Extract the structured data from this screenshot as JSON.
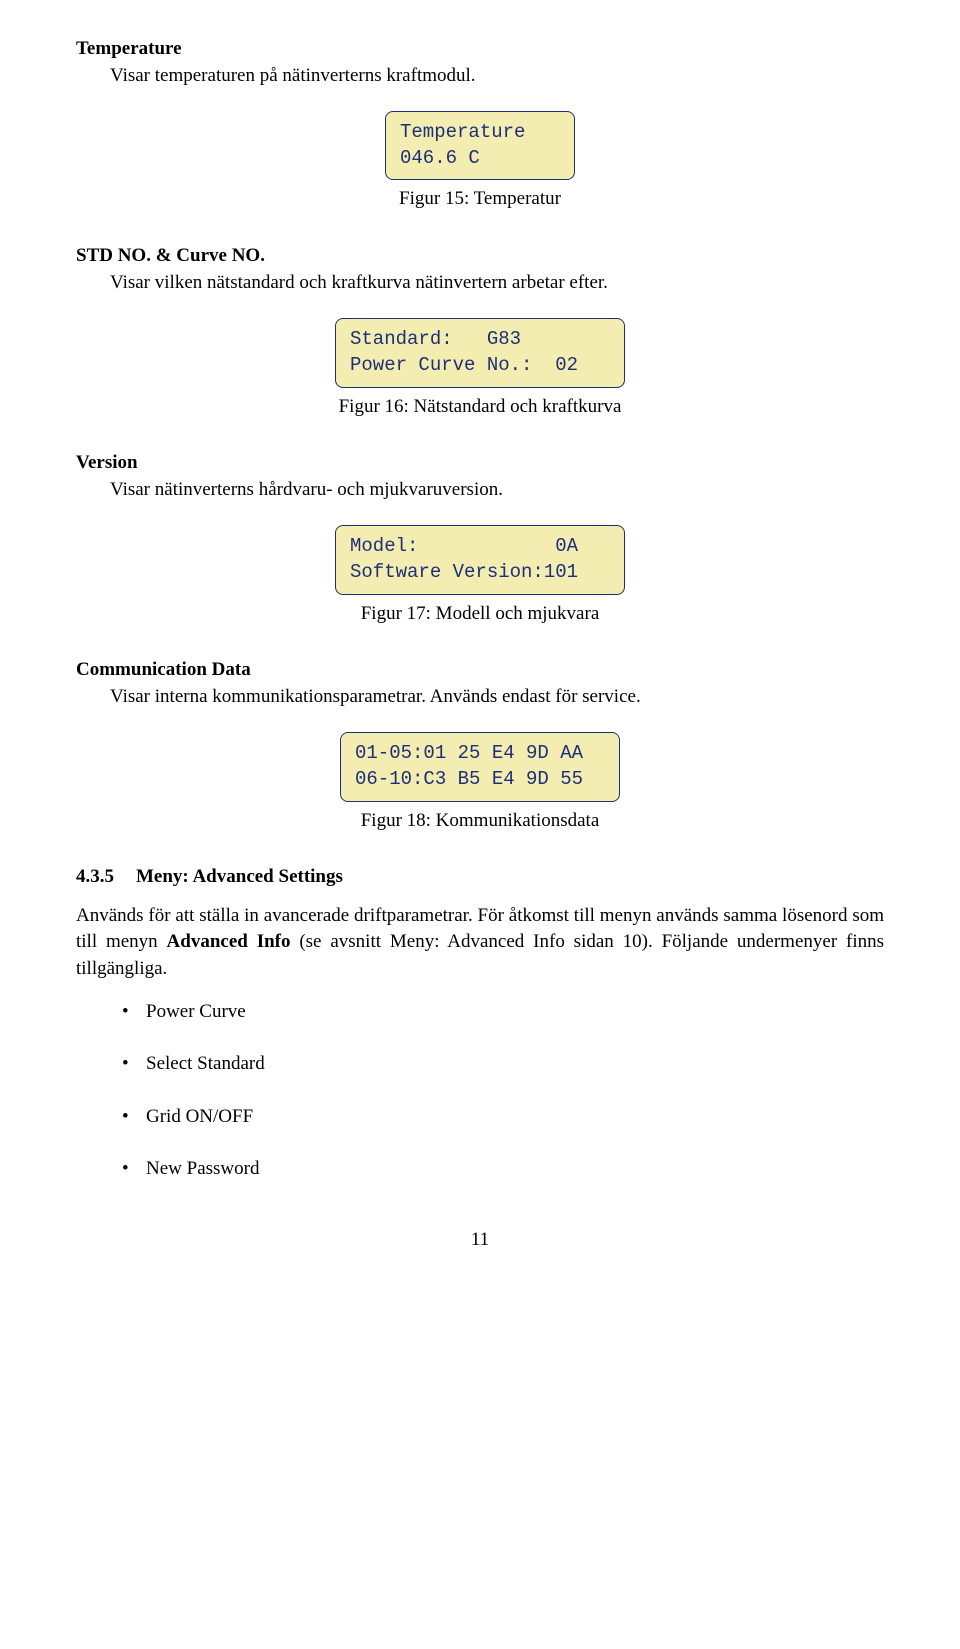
{
  "sections": {
    "temperature": {
      "heading": "Temperature",
      "body": "Visar temperaturen på nätinverterns kraftmodul.",
      "box": {
        "line1": "Temperature",
        "line2": "046.6 C"
      },
      "caption": "Figur 15: Temperatur"
    },
    "std_curve": {
      "heading": "STD NO. & Curve NO.",
      "body": "Visar vilken nätstandard och kraftkurva nätinvertern arbetar efter.",
      "box": {
        "line1": "Standard:   G83",
        "line2": "Power Curve No.:  02"
      },
      "caption": "Figur 16: Nätstandard och kraftkurva"
    },
    "version": {
      "heading": "Version",
      "body": "Visar nätinverterns hårdvaru- och mjukvaruversion.",
      "box": {
        "line1": "Model:            0A",
        "line2": "Software Version:101"
      },
      "caption": "Figur 17: Modell och mjukvara"
    },
    "comm": {
      "heading": "Communication Data",
      "body": "Visar interna kommunikationsparametrar. Används endast för service.",
      "box": {
        "line1": "01-05:01 25 E4 9D AA",
        "line2": "06-10:C3 B5 E4 9D 55"
      },
      "caption": "Figur 18: Kommunikationsdata"
    }
  },
  "subsection": {
    "number": "4.3.5",
    "title": "Meny: Advanced Settings",
    "para_pre": "Används för att ställa in avancerade driftparametrar. För åtkomst till menyn används samma lösenord som till menyn ",
    "para_bold": "Advanced Info",
    "para_post": " (se avsnitt Meny: Advanced Info sidan 10). Följande undermenyer finns tillgängliga.",
    "bullets": [
      "Power Curve",
      "Select Standard",
      "Grid ON/OFF",
      "New Password"
    ]
  },
  "page_number": "11",
  "colors": {
    "box_bg": "#f3edb2",
    "box_border": "#1d2f78",
    "box_text": "#1d2f78",
    "page_bg": "#ffffff",
    "text": "#000000"
  }
}
